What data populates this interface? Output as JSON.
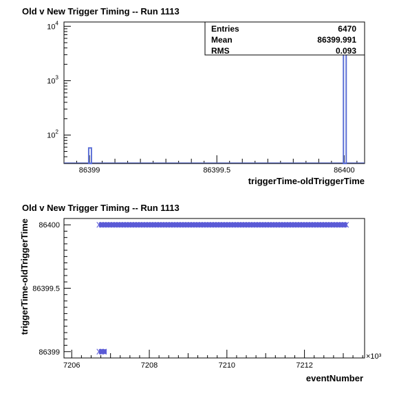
{
  "chart_data": [
    {
      "type": "bar",
      "title": "Old v New Trigger Timing -- Run 1113",
      "xlabel": "triggerTime-oldTriggerTime",
      "ylabel": "",
      "log_y": true,
      "xlim": [
        86398.9,
        86400.08
      ],
      "ylim": [
        30,
        12000
      ],
      "x_ticks": [
        "86399",
        "86399.5",
        "86400"
      ],
      "y_ticks": [
        {
          "base": "10",
          "exp": "4"
        },
        {
          "base": "10",
          "exp": "3"
        },
        {
          "base": "10",
          "exp": "2"
        }
      ],
      "bins": [
        {
          "x": 86399,
          "count": 58
        },
        {
          "x": 86400,
          "count": 6412
        }
      ],
      "stats": [
        {
          "label": "Entries",
          "value": "6470"
        },
        {
          "label": "Mean",
          "value": "86399.991"
        },
        {
          "label": "RMS",
          "value": "0.093"
        }
      ],
      "colors": {
        "line": "#5b6fd6"
      }
    },
    {
      "type": "scatter",
      "title": "Old v New Trigger Timing -- Run 1113",
      "xlabel": "eventNumber",
      "ylabel": "triggerTime-oldTriggerTime",
      "x_multiplier": "×10³",
      "xlim": [
        7205.8,
        7213.55
      ],
      "ylim": [
        86398.95,
        86400.05
      ],
      "x_ticks": [
        "7206",
        "7208",
        "7210",
        "7212"
      ],
      "y_ticks": [
        "86400",
        "86399.5",
        "86399"
      ],
      "series": [
        {
          "x_range": [
            7206.7,
            7213.1
          ],
          "y": 86400
        },
        {
          "x_range": [
            7206.7,
            7206.9
          ],
          "y": 86399
        }
      ],
      "colors": {
        "marker": "#5b5bd6"
      }
    }
  ]
}
